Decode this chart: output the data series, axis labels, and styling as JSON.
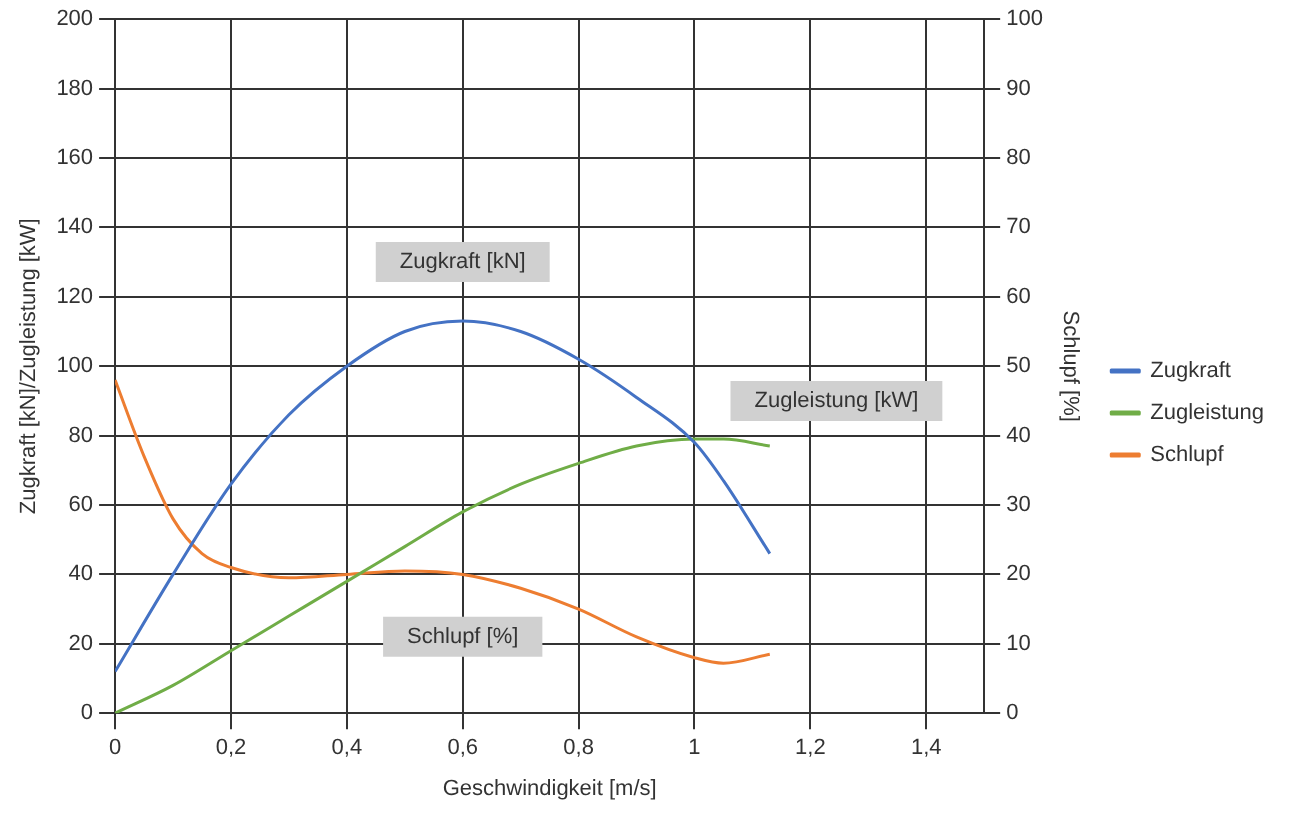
{
  "chart_data": {
    "type": "line",
    "xlabel": "Geschwindigkeit [m/s]",
    "ylabel": "Zugkraft [kN]/Zugleistung [kW]",
    "y2label": "Schlupf [%]",
    "xlim": [
      0,
      1.5
    ],
    "xticks": [
      0,
      {
        "value": 0.2,
        "label": "0,2"
      },
      {
        "value": 0.4,
        "label": "0,4"
      },
      {
        "value": 0.6,
        "label": "0,6"
      },
      {
        "value": 0.8,
        "label": "0,8"
      },
      1,
      {
        "value": 1.2,
        "label": "1,2"
      },
      {
        "value": 1.4,
        "label": "1,4"
      }
    ],
    "ylim": [
      0,
      200
    ],
    "yticks": [
      0,
      20,
      40,
      60,
      80,
      100,
      120,
      140,
      160,
      180,
      200
    ],
    "y2lim": [
      0,
      100
    ],
    "y2ticks": [
      0,
      10,
      20,
      30,
      40,
      50,
      60,
      70,
      80,
      90,
      100
    ],
    "grid": true,
    "legend": "right",
    "marker": "none",
    "line_style": "solid",
    "series": [
      {
        "name": "Zugkraft",
        "color": "#4472c4",
        "x": [
          0,
          0.1,
          0.2,
          0.3,
          0.4,
          0.5,
          0.6,
          0.7,
          0.8,
          0.9,
          1.0,
          1.05,
          1.13
        ],
        "values": [
          12,
          40,
          66,
          86,
          100,
          110,
          113,
          110,
          102,
          91,
          78,
          67,
          46
        ]
      },
      {
        "name": "Zugleistung",
        "color": "#70ad47",
        "x": [
          0,
          0.1,
          0.2,
          0.3,
          0.4,
          0.5,
          0.6,
          0.7,
          0.8,
          0.9,
          1.0,
          1.05,
          1.13
        ],
        "values": [
          0,
          8,
          18,
          28,
          38,
          48,
          58,
          66,
          72,
          77,
          79,
          79,
          77
        ]
      },
      {
        "name": "Schlupf",
        "color": "#ed7d31",
        "axis": "y2",
        "x": [
          0,
          0.05,
          0.1,
          0.15,
          0.2,
          0.3,
          0.4,
          0.5,
          0.6,
          0.7,
          0.8,
          0.9,
          1.0,
          1.05,
          1.13
        ],
        "values": [
          48,
          37,
          28,
          23,
          21,
          19.5,
          20,
          20.5,
          20,
          18,
          15,
          11,
          8,
          7.2,
          8.5
        ]
      }
    ],
    "annotations": [
      "Zugkraft [kN]",
      "Zugleistung [kW]",
      "Schlupf [%]"
    ]
  }
}
